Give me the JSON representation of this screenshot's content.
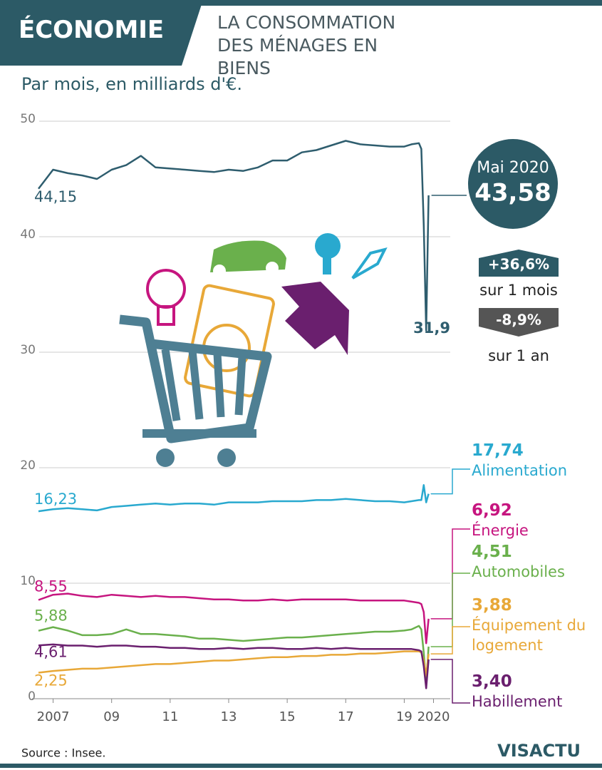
{
  "header": {
    "section": "ÉCONOMIE",
    "title": "LA CONSOMMATION DES MÉNAGES EN BIENS"
  },
  "chart_data": {
    "type": "line",
    "subtitle": "Par mois, en milliards d'€.",
    "x": [
      2007,
      2007.5,
      2008,
      2008.5,
      2009,
      2009.5,
      2010,
      2010.5,
      2011,
      2011.5,
      2012,
      2012.5,
      2013,
      2013.5,
      2014,
      2014.5,
      2015,
      2015.5,
      2016,
      2016.5,
      2017,
      2017.5,
      2018,
      2018.5,
      2019,
      2019.5,
      2019.75,
      2020,
      2020.083,
      2020.167,
      2020.25,
      2020.333
    ],
    "xlim": [
      2007,
      2020.5
    ],
    "xticks": [
      {
        "value": 2007.5,
        "label": "2007"
      },
      {
        "value": 2009.5,
        "label": "09"
      },
      {
        "value": 2011.5,
        "label": "11"
      },
      {
        "value": 2013.5,
        "label": "13"
      },
      {
        "value": 2015.5,
        "label": "15"
      },
      {
        "value": 2017.5,
        "label": "17"
      },
      {
        "value": 2019.5,
        "label": "19"
      },
      {
        "value": 2020.5,
        "label": "2020"
      }
    ],
    "ylim": [
      0,
      50
    ],
    "yticks": [
      0,
      10,
      20,
      30,
      40,
      50
    ],
    "grid": true,
    "series": [
      {
        "color": "#2e5d6e",
        "values": [
          44.15,
          45.8,
          45.5,
          45.3,
          45.0,
          45.8,
          46.2,
          47.0,
          46.0,
          45.9,
          45.8,
          45.7,
          45.6,
          45.8,
          45.7,
          46.0,
          46.6,
          46.6,
          47.3,
          47.5,
          47.9,
          48.3,
          48.0,
          47.9,
          47.8,
          47.8,
          48.0,
          48.1,
          47.6,
          41.0,
          31.9,
          43.58
        ],
        "value_labels": [
          "44,15",
          null,
          null,
          null,
          null,
          null,
          null,
          null,
          null,
          null,
          null,
          null,
          null,
          null,
          null,
          null,
          null,
          null,
          null,
          null,
          null,
          null,
          null,
          null,
          null,
          null,
          null,
          null,
          null,
          null,
          "31,9",
          "43,58"
        ]
      },
      {
        "name": "Alimentation",
        "color": "#29a9cf",
        "values": [
          16.23,
          16.4,
          16.5,
          16.4,
          16.3,
          16.6,
          16.7,
          16.8,
          16.9,
          16.8,
          16.9,
          16.9,
          16.8,
          17.0,
          17.0,
          17.0,
          17.1,
          17.1,
          17.1,
          17.2,
          17.2,
          17.3,
          17.2,
          17.1,
          17.1,
          17.0,
          17.1,
          17.2,
          17.2,
          18.5,
          17.0,
          17.74
        ],
        "value_labels": [
          "16,23",
          null,
          null,
          null,
          null,
          null,
          null,
          null,
          null,
          null,
          null,
          null,
          null,
          null,
          null,
          null,
          null,
          null,
          null,
          null,
          null,
          null,
          null,
          null,
          null,
          null,
          null,
          null,
          null,
          null,
          null,
          "17,74"
        ]
      },
      {
        "name": "Énergie",
        "color": "#c6157f",
        "values": [
          8.55,
          9.0,
          9.1,
          8.9,
          8.8,
          9.0,
          8.9,
          8.8,
          8.9,
          8.8,
          8.8,
          8.7,
          8.6,
          8.6,
          8.5,
          8.5,
          8.6,
          8.5,
          8.6,
          8.6,
          8.6,
          8.6,
          8.5,
          8.5,
          8.5,
          8.5,
          8.4,
          8.3,
          8.2,
          7.5,
          4.8,
          6.92
        ],
        "value_labels": [
          "8,55",
          null,
          null,
          null,
          null,
          null,
          null,
          null,
          null,
          null,
          null,
          null,
          null,
          null,
          null,
          null,
          null,
          null,
          null,
          null,
          null,
          null,
          null,
          null,
          null,
          null,
          null,
          null,
          null,
          null,
          null,
          "6,92"
        ]
      },
      {
        "name": "Automobiles",
        "color": "#6ab04c",
        "values": [
          5.88,
          6.2,
          5.9,
          5.5,
          5.5,
          5.6,
          6.0,
          5.6,
          5.6,
          5.5,
          5.4,
          5.2,
          5.2,
          5.1,
          5.0,
          5.1,
          5.2,
          5.3,
          5.3,
          5.4,
          5.5,
          5.6,
          5.7,
          5.8,
          5.8,
          5.9,
          6.0,
          6.3,
          6.0,
          4.0,
          1.3,
          4.51
        ],
        "value_labels": [
          "5,88",
          null,
          null,
          null,
          null,
          null,
          null,
          null,
          null,
          null,
          null,
          null,
          null,
          null,
          null,
          null,
          null,
          null,
          null,
          null,
          null,
          null,
          null,
          null,
          null,
          null,
          null,
          null,
          null,
          null,
          null,
          "4,51"
        ]
      },
      {
        "name": "Équipement du logement",
        "color": "#e8a838",
        "values": [
          2.25,
          2.4,
          2.5,
          2.6,
          2.6,
          2.7,
          2.8,
          2.9,
          3.0,
          3.0,
          3.1,
          3.2,
          3.3,
          3.3,
          3.4,
          3.5,
          3.6,
          3.6,
          3.7,
          3.7,
          3.8,
          3.8,
          3.9,
          3.9,
          4.0,
          4.1,
          4.1,
          4.1,
          4.0,
          3.3,
          2.0,
          3.88
        ],
        "value_labels": [
          "2,25",
          null,
          null,
          null,
          null,
          null,
          null,
          null,
          null,
          null,
          null,
          null,
          null,
          null,
          null,
          null,
          null,
          null,
          null,
          null,
          null,
          null,
          null,
          null,
          null,
          null,
          null,
          null,
          null,
          null,
          null,
          "3,88"
        ]
      },
      {
        "name": "Habillement",
        "color": "#6a1f6e",
        "values": [
          4.61,
          4.7,
          4.6,
          4.6,
          4.5,
          4.6,
          4.6,
          4.5,
          4.5,
          4.4,
          4.4,
          4.3,
          4.3,
          4.4,
          4.3,
          4.4,
          4.4,
          4.3,
          4.3,
          4.4,
          4.3,
          4.4,
          4.3,
          4.3,
          4.3,
          4.3,
          4.3,
          4.2,
          4.1,
          2.8,
          0.9,
          3.4
        ],
        "value_labels": [
          "4,61",
          null,
          null,
          null,
          null,
          null,
          null,
          null,
          null,
          null,
          null,
          null,
          null,
          null,
          null,
          null,
          null,
          null,
          null,
          null,
          null,
          null,
          null,
          null,
          null,
          null,
          null,
          null,
          null,
          null,
          null,
          "3,40"
        ]
      }
    ],
    "callout": {
      "period": "Mai 2020",
      "monthly_change": "+36,6%",
      "monthly_text": "sur 1 mois",
      "yearly_change": "-8,9%",
      "yearly_text": "sur 1 an"
    },
    "source": "Source : Insee."
  },
  "footer": {
    "logo": "VISACTU"
  }
}
